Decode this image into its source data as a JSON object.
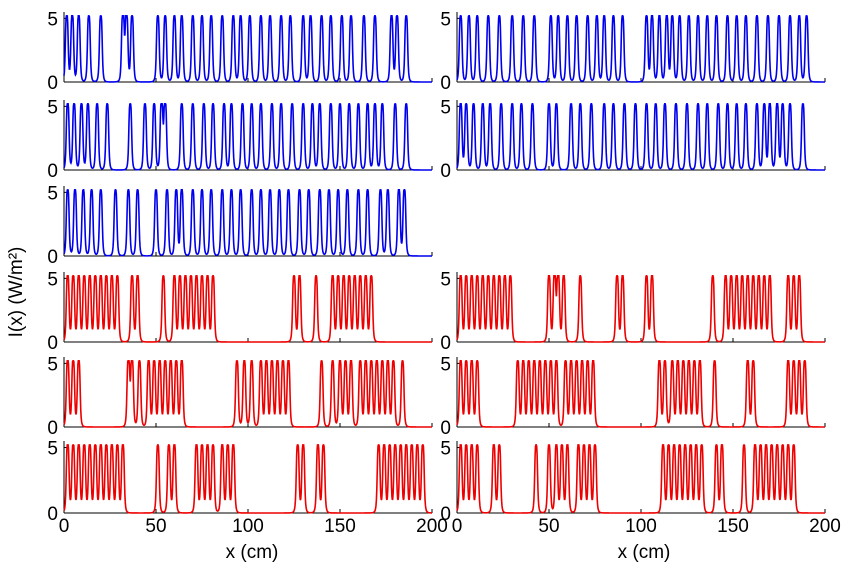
{
  "figure": {
    "ylabel": "I(x) (W/m²)",
    "xlabel_left": "x (cm)",
    "xlabel_right": "x (cm)"
  },
  "chart_data": [
    {
      "type": "line",
      "panel": "row1-left",
      "color": "#0000ee",
      "xlim": [
        0,
        200
      ],
      "ylim": [
        0,
        5
      ],
      "peaks": [
        1.5,
        4.5,
        8,
        13.5,
        20,
        32,
        34,
        37,
        51,
        55,
        60,
        64,
        70,
        75,
        80,
        86,
        92,
        96,
        101,
        107,
        112,
        118,
        123,
        130,
        134,
        140,
        145,
        151,
        156,
        163,
        169,
        178,
        181,
        186
      ]
    },
    {
      "type": "line",
      "panel": "row1-right",
      "color": "#0000ee",
      "xlim": [
        0,
        200
      ],
      "ylim": [
        0,
        5
      ],
      "peaks": [
        2,
        6.5,
        11,
        17,
        23,
        30,
        36,
        42,
        51,
        55,
        60,
        65,
        71,
        76,
        80,
        85,
        90,
        103,
        106,
        110,
        114,
        117,
        121,
        126,
        131,
        136,
        141,
        147,
        152,
        157,
        163,
        169,
        175,
        181,
        186,
        190
      ]
    },
    {
      "type": "line",
      "panel": "row2-left",
      "color": "#0000ee",
      "xlim": [
        0,
        200
      ],
      "ylim": [
        0,
        5
      ],
      "peaks": [
        2,
        5.5,
        9.5,
        13,
        18,
        23.5,
        36,
        44,
        49,
        53,
        55,
        64,
        70,
        76,
        81,
        87,
        91,
        97,
        102,
        107,
        113,
        118,
        124,
        130,
        135,
        139,
        145,
        150,
        155,
        160,
        165,
        169,
        173,
        180,
        186
      ]
    },
    {
      "type": "line",
      "panel": "row2-right",
      "color": "#0000ee",
      "xlim": [
        0,
        200
      ],
      "ylim": [
        0,
        5
      ],
      "peaks": [
        2,
        5,
        9,
        14,
        18,
        24,
        30,
        35,
        41,
        50,
        54,
        62,
        67,
        73,
        80,
        85,
        91,
        97,
        103,
        108,
        113,
        119,
        125,
        131,
        136,
        142,
        147,
        152,
        157,
        163,
        167,
        170,
        174,
        177,
        181,
        188
      ]
    },
    {
      "type": "line",
      "panel": "row3-left",
      "color": "#0000ee",
      "xlim": [
        0,
        200
      ],
      "ylim": [
        0,
        5
      ],
      "peaks": [
        2,
        6,
        10.5,
        15,
        20,
        28,
        35,
        40,
        50,
        56,
        61,
        64,
        70,
        75,
        80,
        86,
        91,
        96,
        102,
        107,
        112,
        117,
        122,
        128,
        133,
        139,
        144,
        149,
        154,
        160,
        165,
        172,
        176,
        182,
        185
      ]
    },
    {
      "type": "line",
      "panel": "row4-left",
      "color": "#ee0000",
      "xlim": [
        0,
        200
      ],
      "ylim": [
        0,
        5
      ],
      "peaks": [
        2,
        5,
        8,
        11,
        14,
        17,
        20,
        23,
        26,
        29,
        37,
        40,
        54,
        60,
        63,
        66,
        69,
        72,
        75,
        78,
        81,
        125,
        128,
        137,
        146,
        149,
        152,
        155,
        158,
        161,
        164,
        167
      ]
    },
    {
      "type": "line",
      "panel": "row4-right",
      "color": "#ee0000",
      "xlim": [
        0,
        200
      ],
      "ylim": [
        0,
        5
      ],
      "peaks": [
        2,
        5,
        8,
        11,
        14,
        17,
        20,
        23,
        26,
        29,
        50,
        53,
        55,
        58,
        67,
        87,
        90,
        103,
        106,
        139,
        146,
        149,
        152,
        155,
        158,
        161,
        164,
        167,
        170,
        180,
        183,
        186
      ]
    },
    {
      "type": "line",
      "panel": "row5-left",
      "color": "#ee0000",
      "xlim": [
        0,
        200
      ],
      "ylim": [
        0,
        5
      ],
      "peaks": [
        2,
        5,
        8,
        35,
        37,
        41,
        46,
        49,
        52,
        55,
        58,
        61,
        64,
        94,
        98,
        102,
        107,
        110,
        113,
        116,
        119,
        122,
        140,
        146,
        150,
        153,
        156,
        161,
        164,
        167,
        170,
        173,
        176,
        179,
        184
      ]
    },
    {
      "type": "line",
      "panel": "row5-right",
      "color": "#ee0000",
      "xlim": [
        0,
        200
      ],
      "ylim": [
        0,
        5
      ],
      "peaks": [
        2,
        5,
        8,
        11,
        33,
        36,
        39,
        42,
        45,
        48,
        51,
        54,
        59,
        62,
        65,
        68,
        71,
        74,
        110,
        113,
        117,
        120,
        123,
        126,
        129,
        132,
        140,
        158,
        161,
        180,
        183,
        186,
        189
      ]
    },
    {
      "type": "line",
      "panel": "row6-left",
      "color": "#ee0000",
      "xlim": [
        0,
        200
      ],
      "ylim": [
        0,
        5
      ],
      "peaks": [
        2,
        5,
        8,
        11,
        14,
        17,
        20,
        23,
        26,
        29,
        32,
        51,
        57,
        60,
        72,
        75,
        78,
        81,
        86,
        89,
        92,
        127,
        130,
        138,
        141,
        171,
        174,
        177,
        180,
        183,
        186,
        189,
        192,
        195
      ]
    },
    {
      "type": "line",
      "panel": "row6-right",
      "color": "#ee0000",
      "xlim": [
        0,
        200
      ],
      "ylim": [
        0,
        5
      ],
      "peaks": [
        2,
        5,
        8,
        11,
        20,
        23,
        43,
        50,
        54,
        57,
        60,
        66,
        69,
        72,
        75,
        112,
        115,
        118,
        121,
        124,
        127,
        130,
        133,
        141,
        144,
        156,
        162,
        165,
        168,
        171,
        174,
        177,
        180,
        183
      ]
    }
  ]
}
